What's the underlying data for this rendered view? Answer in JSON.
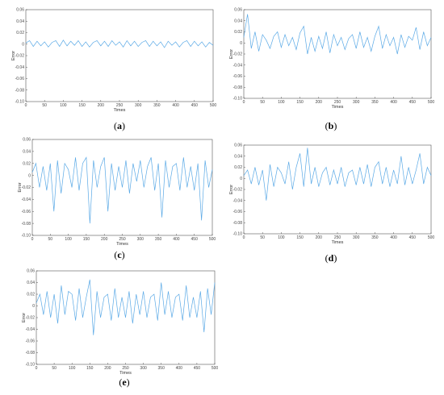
{
  "figure": {
    "panels": [
      "(a)",
      "(b)",
      "(c)",
      "(d)",
      "(e)"
    ]
  },
  "chart_data": [
    {
      "panel": "a",
      "type": "line",
      "xlabel": "Times",
      "ylabel": "Error",
      "xlim": [
        0,
        500
      ],
      "ylim": [
        -0.1,
        0.06
      ],
      "xticks": [
        0,
        50,
        100,
        150,
        200,
        250,
        300,
        350,
        400,
        450,
        500
      ],
      "yticks": [
        -0.1,
        -0.08,
        -0.06,
        -0.04,
        -0.02,
        0,
        0.02,
        0.04,
        0.06
      ],
      "grid": false,
      "line_color": "#5aa9e6",
      "series": [
        {
          "x": [
            0,
            10,
            20,
            30,
            40,
            50,
            60,
            70,
            80,
            90,
            100,
            110,
            120,
            130,
            140,
            150,
            160,
            170,
            180,
            190,
            200,
            210,
            220,
            230,
            240,
            250,
            260,
            270,
            280,
            290,
            300,
            310,
            320,
            330,
            340,
            350,
            360,
            370,
            380,
            390,
            400,
            410,
            420,
            430,
            440,
            450,
            460,
            470,
            480,
            490,
            500
          ],
          "values": [
            0.002,
            0.006,
            -0.004,
            0.005,
            -0.003,
            0.004,
            -0.005,
            0.003,
            0.006,
            -0.004,
            0.007,
            -0.003,
            0.005,
            -0.002,
            0.006,
            -0.004,
            0.004,
            -0.005,
            0.003,
            0.006,
            -0.003,
            0.005,
            -0.004,
            0.006,
            -0.002,
            0.004,
            -0.005,
            0.006,
            -0.003,
            0.005,
            -0.004,
            0.003,
            0.006,
            -0.004,
            0.005,
            -0.003,
            0.004,
            -0.006,
            0.005,
            -0.002,
            0.004,
            -0.005,
            0.003,
            0.006,
            -0.004,
            0.005,
            -0.003,
            0.004,
            -0.005,
            0.003,
            -0.002
          ]
        }
      ]
    },
    {
      "panel": "b",
      "type": "line",
      "xlabel": "Times",
      "ylabel": "Error",
      "xlim": [
        0,
        500
      ],
      "ylim": [
        -0.1,
        0.06
      ],
      "xticks": [
        0,
        50,
        100,
        150,
        200,
        250,
        300,
        350,
        400,
        450,
        500
      ],
      "yticks": [
        -0.1,
        -0.08,
        -0.06,
        -0.04,
        -0.02,
        0,
        0.02,
        0.04,
        0.06
      ],
      "grid": false,
      "line_color": "#5aa9e6",
      "series": [
        {
          "x": [
            0,
            10,
            20,
            30,
            40,
            50,
            60,
            70,
            80,
            90,
            100,
            110,
            120,
            130,
            140,
            150,
            160,
            170,
            180,
            190,
            200,
            210,
            220,
            230,
            240,
            250,
            260,
            270,
            280,
            290,
            300,
            310,
            320,
            330,
            340,
            350,
            360,
            370,
            380,
            390,
            400,
            410,
            420,
            430,
            440,
            450,
            460,
            470,
            480,
            490,
            500
          ],
          "values": [
            0.01,
            0.052,
            -0.01,
            0.02,
            -0.015,
            0.015,
            0.005,
            -0.01,
            0.012,
            0.02,
            -0.008,
            0.015,
            -0.005,
            0.01,
            -0.012,
            0.018,
            0.03,
            -0.02,
            0.01,
            -0.015,
            0.012,
            -0.01,
            0.02,
            -0.018,
            0.015,
            -0.005,
            0.01,
            -0.012,
            0.008,
            0.015,
            -0.01,
            0.02,
            -0.008,
            0.01,
            -0.015,
            0.012,
            0.03,
            -0.01,
            0.015,
            -0.005,
            0.01,
            -0.02,
            0.015,
            -0.008,
            0.012,
            0.005,
            0.028,
            -0.012,
            0.02,
            -0.005,
            0.01
          ]
        }
      ]
    },
    {
      "panel": "c",
      "type": "line",
      "xlabel": "Times",
      "ylabel": "Error",
      "xlim": [
        0,
        500
      ],
      "ylim": [
        -0.1,
        0.06
      ],
      "xticks": [
        0,
        50,
        100,
        150,
        200,
        250,
        300,
        350,
        400,
        450,
        500
      ],
      "yticks": [
        -0.1,
        -0.08,
        -0.06,
        -0.04,
        -0.02,
        0,
        0.02,
        0.04,
        0.06
      ],
      "grid": false,
      "line_color": "#5aa9e6",
      "series": [
        {
          "x": [
            0,
            10,
            20,
            30,
            40,
            50,
            60,
            70,
            80,
            90,
            100,
            110,
            120,
            130,
            140,
            150,
            160,
            170,
            180,
            190,
            200,
            210,
            220,
            230,
            240,
            250,
            260,
            270,
            280,
            290,
            300,
            310,
            320,
            330,
            340,
            350,
            360,
            370,
            380,
            390,
            400,
            410,
            420,
            430,
            440,
            450,
            460,
            470,
            480,
            490,
            500
          ],
          "values": [
            0.005,
            0.02,
            -0.02,
            0.015,
            -0.025,
            0.02,
            -0.06,
            0.025,
            -0.03,
            0.02,
            0.01,
            -0.02,
            0.03,
            -0.025,
            0.02,
            0.03,
            -0.08,
            0.025,
            -0.02,
            0.015,
            0.03,
            -0.06,
            0.02,
            -0.025,
            0.015,
            -0.02,
            0.025,
            -0.03,
            0.02,
            -0.01,
            0.025,
            -0.02,
            0.015,
            0.03,
            -0.025,
            0.02,
            -0.07,
            0.025,
            -0.02,
            0.015,
            0.02,
            -0.025,
            0.03,
            -0.02,
            0.015,
            -0.025,
            0.02,
            -0.075,
            0.025,
            -0.02,
            0.01
          ]
        }
      ]
    },
    {
      "panel": "d",
      "type": "line",
      "xlabel": "Times",
      "ylabel": "Error",
      "xlim": [
        0,
        500
      ],
      "ylim": [
        -0.1,
        0.06
      ],
      "xticks": [
        0,
        50,
        100,
        150,
        200,
        250,
        300,
        350,
        400,
        450,
        500
      ],
      "yticks": [
        -0.1,
        -0.08,
        -0.06,
        -0.04,
        -0.02,
        0,
        0.02,
        0.04,
        0.06
      ],
      "grid": false,
      "line_color": "#5aa9e6",
      "series": [
        {
          "x": [
            0,
            10,
            20,
            30,
            40,
            50,
            60,
            70,
            80,
            90,
            100,
            110,
            120,
            130,
            140,
            150,
            160,
            170,
            180,
            190,
            200,
            210,
            220,
            230,
            240,
            250,
            260,
            270,
            280,
            290,
            300,
            310,
            320,
            330,
            340,
            350,
            360,
            370,
            380,
            390,
            400,
            410,
            420,
            430,
            440,
            450,
            460,
            470,
            480,
            490,
            500
          ],
          "values": [
            0.005,
            0.015,
            -0.01,
            0.02,
            -0.012,
            0.015,
            -0.04,
            0.025,
            -0.015,
            0.02,
            0.01,
            -0.01,
            0.03,
            -0.02,
            0.02,
            0.045,
            -0.015,
            0.055,
            -0.01,
            0.02,
            -0.015,
            0.01,
            0.02,
            -0.012,
            0.015,
            -0.01,
            0.02,
            -0.015,
            0.01,
            0.015,
            -0.012,
            0.02,
            -0.01,
            0.025,
            -0.015,
            0.02,
            0.03,
            -0.01,
            0.02,
            -0.015,
            0.015,
            -0.01,
            0.04,
            -0.012,
            0.02,
            -0.01,
            0.015,
            0.045,
            -0.01,
            0.02,
            0.005
          ]
        }
      ]
    },
    {
      "panel": "e",
      "type": "line",
      "xlabel": "Times",
      "ylabel": "Error",
      "xlim": [
        0,
        500
      ],
      "ylim": [
        -0.1,
        0.06
      ],
      "xticks": [
        0,
        50,
        100,
        150,
        200,
        250,
        300,
        350,
        400,
        450,
        500
      ],
      "yticks": [
        -0.1,
        -0.08,
        -0.06,
        -0.04,
        -0.02,
        0,
        0.02,
        0.04,
        0.06
      ],
      "grid": false,
      "line_color": "#5aa9e6",
      "series": [
        {
          "x": [
            0,
            10,
            20,
            30,
            40,
            50,
            60,
            70,
            80,
            90,
            100,
            110,
            120,
            130,
            140,
            150,
            160,
            170,
            180,
            190,
            200,
            210,
            220,
            230,
            240,
            250,
            260,
            270,
            280,
            290,
            300,
            310,
            320,
            330,
            340,
            350,
            360,
            370,
            380,
            390,
            400,
            410,
            420,
            430,
            440,
            450,
            460,
            470,
            480,
            490,
            500
          ],
          "values": [
            0.005,
            0.02,
            -0.015,
            0.025,
            -0.02,
            0.02,
            -0.03,
            0.035,
            -0.015,
            0.025,
            0.02,
            -0.025,
            0.03,
            -0.02,
            0.015,
            0.045,
            -0.05,
            0.025,
            -0.02,
            0.015,
            0.02,
            -0.025,
            0.03,
            -0.02,
            0.015,
            -0.02,
            0.025,
            -0.03,
            0.02,
            -0.015,
            0.025,
            -0.02,
            0.015,
            0.02,
            -0.025,
            0.04,
            -0.015,
            0.025,
            -0.02,
            0.015,
            0.02,
            -0.025,
            0.035,
            -0.02,
            0.015,
            -0.02,
            0.025,
            -0.045,
            0.03,
            -0.015,
            0.04
          ]
        }
      ]
    }
  ]
}
